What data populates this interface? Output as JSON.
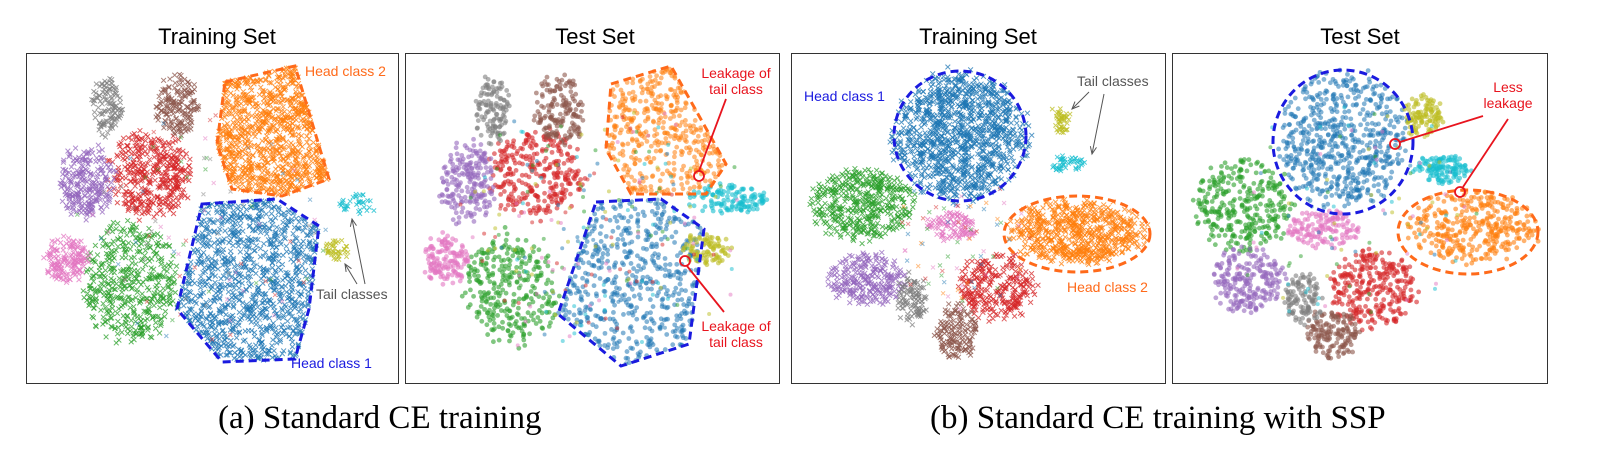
{
  "figure": {
    "captions": [
      "(a) Standard CE training",
      "(b) Standard CE training with SSP"
    ]
  },
  "colors": {
    "blue": "#1f77b4",
    "orange": "#ff7f0e",
    "green": "#2ca02c",
    "red": "#d62728",
    "purple": "#9467bd",
    "brown": "#8c564b",
    "pink": "#e377c2",
    "gray": "#7f7f7f",
    "olive": "#bcbd22",
    "cyan": "#17becf",
    "outline_blue": "#1a1adf",
    "outline_orange": "#ff6a1a",
    "leak_red": "#e8141e",
    "arrow_gray": "#555555"
  },
  "chart_data": [
    {
      "type": "scatter",
      "title": "Training Set",
      "clusters": [
        "blue",
        "orange",
        "green",
        "red",
        "purple",
        "brown",
        "pink",
        "gray",
        "olive",
        "cyan"
      ],
      "annotations": [
        "Head class 2",
        "Tail classes",
        "Head class 1"
      ]
    },
    {
      "type": "scatter",
      "title": "Test Set",
      "clusters": [
        "blue",
        "orange",
        "green",
        "red",
        "purple",
        "brown",
        "pink",
        "gray",
        "olive",
        "cyan"
      ],
      "annotations": [
        "Leakage of\ntail class",
        "Leakage of\ntail class"
      ]
    },
    {
      "type": "scatter",
      "title": "Training Set",
      "clusters": [
        "blue",
        "orange",
        "green",
        "red",
        "purple",
        "brown",
        "pink",
        "gray",
        "olive",
        "cyan"
      ],
      "annotations": [
        "Head class 1",
        "Tail classes",
        "Head class 2"
      ]
    },
    {
      "type": "scatter",
      "title": "Test Set",
      "clusters": [
        "blue",
        "orange",
        "green",
        "red",
        "purple",
        "brown",
        "pink",
        "gray",
        "olive",
        "cyan"
      ],
      "annotations": [
        "Less\nleakage"
      ]
    }
  ]
}
